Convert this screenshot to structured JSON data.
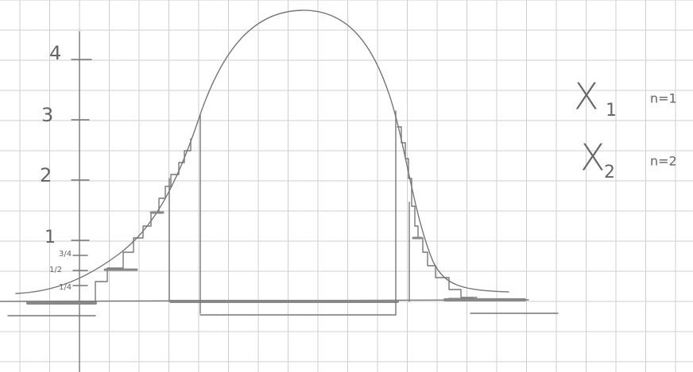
{
  "axis_labels": [
    "4",
    "3",
    "2",
    "1",
    "3/4",
    "1/2",
    "1/4"
  ],
  "legend": [
    {
      "symbol": "X",
      "subscript": "1",
      "note": "n=1"
    },
    {
      "symbol": "X",
      "subscript": "2",
      "note": "n=2"
    }
  ]
}
